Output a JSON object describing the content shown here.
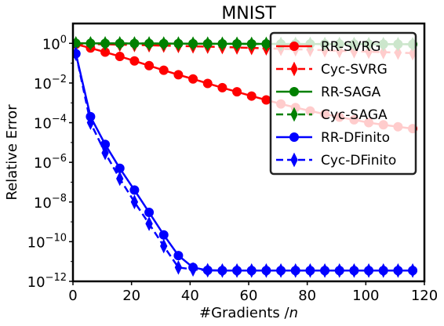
{
  "chart_data": {
    "type": "line",
    "title": "MNIST",
    "xlabel": "#Gradients /",
    "xlabel_italic": "n",
    "ylabel": "Relative Error",
    "xlim": [
      0,
      120
    ],
    "ylim_log10": [
      -12,
      1
    ],
    "y_scale": "log",
    "x_ticks": [
      0,
      20,
      40,
      60,
      80,
      100,
      120
    ],
    "x_tick_labels": [
      "0",
      "20",
      "40",
      "60",
      "80",
      "100",
      "120"
    ],
    "y_ticks_log10": [
      -12,
      -10,
      -8,
      -6,
      -4,
      -2,
      0
    ],
    "y_tick_labels": [
      {
        "base": "10",
        "exp": "−12"
      },
      {
        "base": "10",
        "exp": "−10"
      },
      {
        "base": "10",
        "exp": "−8"
      },
      {
        "base": "10",
        "exp": "−6"
      },
      {
        "base": "10",
        "exp": "−4"
      },
      {
        "base": "10",
        "exp": "−2"
      },
      {
        "base": "10",
        "exp": "0"
      }
    ],
    "grid": false,
    "legend_position": "top-right",
    "series": [
      {
        "name": "RR-SVRG",
        "color": "#ff0000",
        "line_style": "solid",
        "marker": "circle",
        "x": [
          1,
          6,
          11,
          16,
          21,
          26,
          31,
          36,
          41,
          46,
          51,
          56,
          61,
          66,
          71,
          76,
          81,
          86,
          91,
          96,
          101,
          106,
          111,
          116
        ],
        "y": [
          0.9,
          0.58,
          0.36,
          0.22,
          0.13,
          0.075,
          0.044,
          0.026,
          0.016,
          0.0095,
          0.0058,
          0.0036,
          0.0022,
          0.0014,
          0.00088,
          0.00058,
          0.00039,
          0.00027,
          0.00019,
          0.00014,
          0.0001,
          7.8e-05,
          6.2e-05,
          5e-05
        ]
      },
      {
        "name": "Cyc-SVRG",
        "color": "#ff0000",
        "line_style": "dashed",
        "marker": "diamond",
        "x": [
          1,
          6,
          11,
          16,
          21,
          26,
          31,
          36,
          41,
          46,
          51,
          56,
          61,
          66,
          71,
          76,
          81,
          86,
          91,
          96,
          101,
          106,
          111,
          116
        ],
        "y": [
          0.95,
          0.92,
          0.89,
          0.86,
          0.83,
          0.8,
          0.77,
          0.74,
          0.71,
          0.68,
          0.65,
          0.62,
          0.59,
          0.56,
          0.53,
          0.5,
          0.48,
          0.45,
          0.42,
          0.4,
          0.38,
          0.36,
          0.34,
          0.32
        ]
      },
      {
        "name": "RR-SAGA",
        "color": "#008000",
        "line_style": "solid",
        "marker": "circle",
        "x": [
          1,
          6,
          11,
          16,
          21,
          26,
          31,
          36,
          41,
          46,
          51,
          56,
          61,
          66,
          71,
          76,
          81,
          86,
          91,
          96,
          101,
          106,
          111,
          116
        ],
        "y": [
          1.0,
          1.0,
          0.99,
          0.99,
          0.98,
          0.98,
          0.97,
          0.97,
          0.96,
          0.96,
          0.95,
          0.95,
          0.94,
          0.94,
          0.93,
          0.93,
          0.93,
          0.92,
          0.92,
          0.92,
          0.91,
          0.91,
          0.91,
          0.9
        ]
      },
      {
        "name": "Cyc-SAGA",
        "color": "#008000",
        "line_style": "dashed",
        "marker": "diamond",
        "x": [
          1,
          6,
          11,
          16,
          21,
          26,
          31,
          36,
          41,
          46,
          51,
          56,
          61,
          66,
          71,
          76,
          81,
          86,
          91,
          96,
          101,
          106,
          111,
          116
        ],
        "y": [
          1.0,
          1.0,
          0.99,
          0.99,
          0.98,
          0.98,
          0.97,
          0.97,
          0.96,
          0.96,
          0.95,
          0.95,
          0.94,
          0.94,
          0.93,
          0.93,
          0.93,
          0.92,
          0.92,
          0.92,
          0.91,
          0.91,
          0.91,
          0.9
        ]
      },
      {
        "name": "RR-DFinito",
        "color": "#0000ff",
        "line_style": "solid",
        "marker": "circle",
        "x": [
          1,
          6,
          11,
          16,
          21,
          26,
          31,
          36,
          41,
          46,
          51,
          56,
          61,
          66,
          71,
          76,
          81,
          86,
          91,
          96,
          101,
          106,
          111,
          116
        ],
        "y": [
          0.3,
          0.0002,
          8e-06,
          5e-07,
          4e-08,
          3e-09,
          2.2e-10,
          2e-11,
          5e-12,
          3.6e-12,
          3.5e-12,
          3.5e-12,
          3.5e-12,
          3.5e-12,
          3.5e-12,
          3.5e-12,
          3.5e-12,
          3.5e-12,
          3.5e-12,
          3.5e-12,
          3.5e-12,
          3.5e-12,
          3.5e-12,
          3.5e-12
        ]
      },
      {
        "name": "Cyc-DFinito",
        "color": "#0000ff",
        "line_style": "dashed",
        "marker": "diamond",
        "x": [
          1,
          6,
          11,
          16,
          21,
          26,
          31,
          36,
          41,
          46,
          51,
          56,
          61,
          66,
          71,
          76,
          81,
          86,
          91,
          96,
          101,
          106,
          111,
          116
        ],
        "y": [
          0.3,
          0.0001,
          3e-06,
          1.5e-07,
          1e-08,
          8e-10,
          6e-11,
          5e-12,
          4e-12,
          3.6e-12,
          3.5e-12,
          3.5e-12,
          3.5e-12,
          3.5e-12,
          3.5e-12,
          3.5e-12,
          3.5e-12,
          3.5e-12,
          3.5e-12,
          3.5e-12,
          3.5e-12,
          3.5e-12,
          3.5e-12,
          3.5e-12
        ]
      }
    ]
  }
}
